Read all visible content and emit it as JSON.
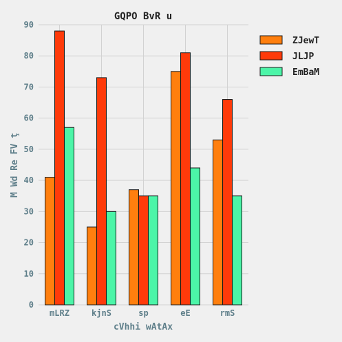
{
  "chart_data": {
    "type": "bar",
    "title": "GQPO BvR u",
    "xlabel": "cVhhi wAtAx",
    "ylabel": "M  Wd Re FV ţ",
    "categories": [
      "mLRZ",
      "kjnS",
      "sp",
      "eE",
      "rmS"
    ],
    "series": [
      {
        "name": "ZJewT",
        "color": "#ff7f0e",
        "values": [
          41,
          25,
          37,
          75,
          53
        ]
      },
      {
        "name": "JLJP",
        "color": "#ff3a0a",
        "values": [
          88,
          73,
          35,
          81,
          66
        ]
      },
      {
        "name": "EmBaM",
        "color": "#4cf5a8",
        "values": [
          57,
          30,
          35,
          44,
          35
        ]
      }
    ],
    "ylim": [
      0,
      90
    ],
    "yticks": [
      0,
      10,
      20,
      30,
      40,
      50,
      60,
      70,
      80,
      90
    ],
    "grid": true,
    "legend_position": "top-right",
    "colors": {
      "background": "#f0f0f0",
      "grid": "#d2d2d2",
      "axis_text": "#5f7f8a",
      "title_text": "#222222",
      "bar_edge": "#1a1a1a"
    }
  }
}
